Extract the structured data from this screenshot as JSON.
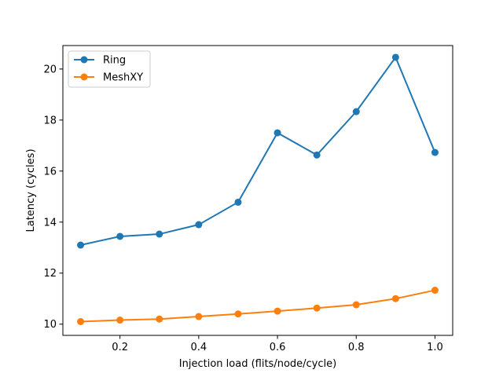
{
  "chart_data": {
    "type": "line",
    "title": "",
    "xlabel": "Injection load (flits/node/cycle)",
    "ylabel": "Latency (cycles)",
    "xlim": [
      0.055,
      1.045
    ],
    "ylim": [
      9.56,
      20.92
    ],
    "xticks": [
      0.2,
      0.4,
      0.6,
      0.8,
      1.0
    ],
    "xtick_labels": [
      "0.2",
      "0.4",
      "0.6",
      "0.8",
      "1.0"
    ],
    "yticks": [
      10,
      12,
      14,
      16,
      18,
      20
    ],
    "ytick_labels": [
      "10",
      "12",
      "14",
      "16",
      "18",
      "20"
    ],
    "grid": false,
    "legend_position": "top-left",
    "x": [
      0.1,
      0.2,
      0.3,
      0.4,
      0.5,
      0.6,
      0.7,
      0.8,
      0.9,
      1.0
    ],
    "series": [
      {
        "name": "Ring",
        "color": "#1f77b4",
        "marker": "circle",
        "values": [
          13.1,
          13.44,
          13.53,
          13.9,
          14.78,
          17.5,
          16.63,
          18.33,
          20.46,
          16.73
        ]
      },
      {
        "name": "MeshXY",
        "color": "#ff7f0e",
        "marker": "circle",
        "values": [
          10.1,
          10.16,
          10.2,
          10.3,
          10.4,
          10.51,
          10.63,
          10.76,
          11.0,
          11.33
        ]
      }
    ]
  }
}
